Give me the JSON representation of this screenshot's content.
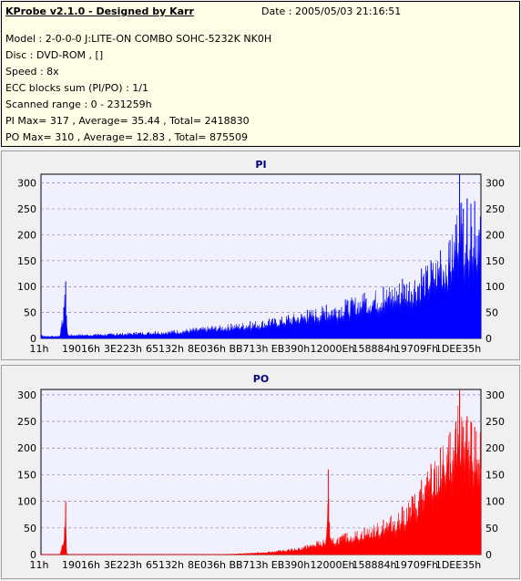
{
  "info": {
    "title": "KProbe v2.1.0 - Designed by Karr",
    "date": "Date : 2005/05/03 21:16:51",
    "lines": [
      "Model : 2-0-0-0 J:LITE-ON COMBO SOHC-5232K NK0H",
      "Disc : DVD-ROM ,  []",
      "Speed : 8x",
      "ECC blocks sum (PI/PO) : 1/1",
      "Scanned range : 0 - 231259h",
      "PI Max= 317 , Average= 35.44 , Total= 2418830",
      "PO Max= 310 , Average= 12.83 , Total= 875509"
    ]
  },
  "colors": {
    "pi": "#0000ff",
    "po": "#ff0000",
    "plot_bg": "#f0f0ff",
    "grid": "#8080c0"
  },
  "chart_data": [
    {
      "type": "area",
      "title": "PI",
      "ylim": [
        0,
        317
      ],
      "xlim": [
        0,
        231259
      ],
      "yticks": [
        0,
        50,
        100,
        150,
        200,
        250,
        300
      ],
      "xtick_labels": [
        "11h",
        "19016h",
        "3E223h",
        "65132h",
        "8E036h",
        "BB713h",
        "EB390h",
        "12000Eh",
        "158884h",
        "19709Fh",
        "1DEE35h"
      ],
      "max": 317,
      "average": 35.44,
      "series": [
        {
          "x": [
            0,
            2000,
            6000,
            10000,
            12000,
            13000,
            14000,
            20000,
            30000,
            40000,
            50000,
            60000,
            70000,
            80000,
            90000,
            100000,
            110000,
            120000,
            130000,
            140000,
            150000,
            160000,
            170000,
            180000,
            190000,
            200000,
            205000,
            210000,
            215000,
            218000,
            220000,
            222000,
            224000,
            226000,
            228000,
            231000
          ],
          "y": [
            10,
            5,
            5,
            6,
            60,
            110,
            8,
            8,
            9,
            10,
            12,
            14,
            16,
            20,
            24,
            28,
            33,
            38,
            45,
            55,
            65,
            75,
            88,
            100,
            115,
            135,
            150,
            170,
            190,
            220,
            317,
            250,
            270,
            260,
            265,
            235
          ]
        }
      ]
    },
    {
      "type": "area",
      "title": "PO",
      "ylim": [
        0,
        310
      ],
      "xlim": [
        0,
        231259
      ],
      "yticks": [
        0,
        50,
        100,
        150,
        200,
        250,
        300
      ],
      "xtick_labels": [
        "11h",
        "19016h",
        "3E223h",
        "65132h",
        "8E036h",
        "BB713h",
        "EB390h",
        "12000Eh",
        "158884h",
        "19709Fh",
        "1DEE35h"
      ],
      "max": 310,
      "average": 12.83,
      "series": [
        {
          "x": [
            0,
            10000,
            12500,
            13000,
            13500,
            15000,
            30000,
            50000,
            70000,
            90000,
            100000,
            110000,
            120000,
            130000,
            140000,
            145000,
            150000,
            151000,
            152000,
            160000,
            170000,
            180000,
            190000,
            195000,
            200000,
            205000,
            210000,
            215000,
            218000,
            220000,
            222000,
            224000,
            226000,
            228000,
            231000
          ],
          "y": [
            0,
            0,
            50,
            100,
            2,
            0,
            0,
            0,
            0,
            0,
            1,
            3,
            6,
            10,
            18,
            25,
            30,
            160,
            30,
            40,
            50,
            65,
            90,
            110,
            140,
            170,
            200,
            230,
            250,
            310,
            240,
            260,
            250,
            240,
            230
          ]
        }
      ]
    }
  ]
}
